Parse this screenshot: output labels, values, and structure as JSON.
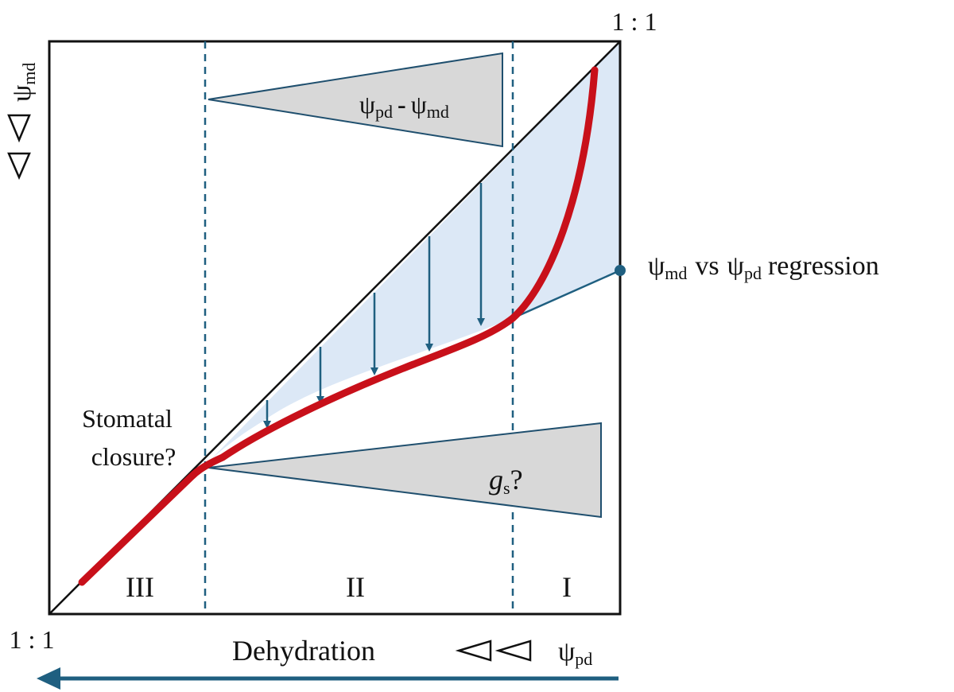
{
  "labels": {
    "top_right": "1 : 1",
    "bottom_left": "1 : 1",
    "psi": "ψ",
    "sub_md": "md",
    "sub_pd": "pd",
    "sub_s": "s",
    "dash": "-",
    "g": "g",
    "question": "?",
    "vs": "vs",
    "regression": "regression",
    "stomatal_line1": "Stomatal",
    "stomatal_line2": "closure?",
    "phase_3": "III",
    "phase_2": "II",
    "phase_1": "I",
    "dehydration": "Dehydration"
  },
  "colors": {
    "red_curve": "#c8101a",
    "teal": "#1f5f80",
    "fill": "#dce8f6",
    "wedge": "#d8d8d8"
  }
}
